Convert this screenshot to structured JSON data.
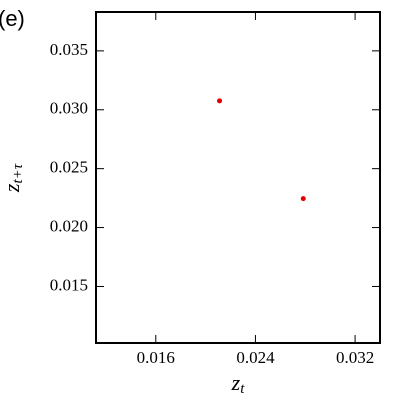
{
  "panel_label": "(e)",
  "chart_data": {
    "type": "scatter",
    "xlabel": {
      "base": "z",
      "sub": "t"
    },
    "ylabel": {
      "base": "z",
      "sub": "t+τ"
    },
    "x": [
      0.02112,
      0.02784
    ],
    "values": [
      0.03076,
      0.02246
    ],
    "color": "#e00000",
    "xlim": [
      0.0112,
      0.034
    ],
    "ylim": [
      0.0102,
      0.0383
    ],
    "xticks": [
      0.016,
      0.024,
      0.032
    ],
    "yticks": [
      {
        "value": 0.015,
        "label": "0.015"
      },
      {
        "value": 0.02,
        "label": "0.020"
      },
      {
        "value": 0.025,
        "label": "0.025"
      },
      {
        "value": 0.03,
        "label": "0.030"
      },
      {
        "value": 0.035,
        "label": "0.035"
      }
    ]
  }
}
